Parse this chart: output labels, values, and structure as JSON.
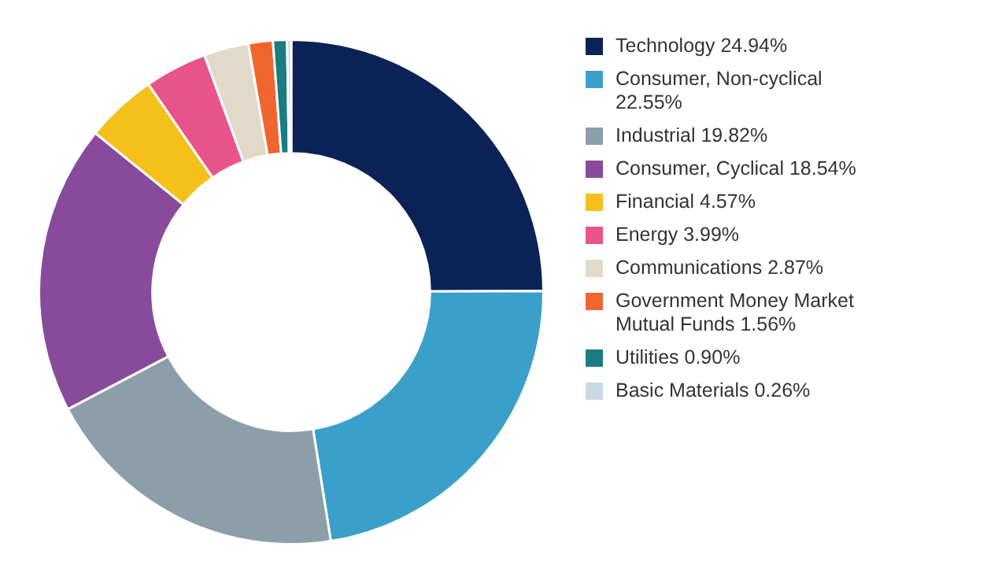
{
  "chart_data": {
    "type": "donut",
    "categories": [
      "Technology",
      "Consumer, Non-cyclical",
      "Industrial",
      "Consumer, Cyclical",
      "Financial",
      "Energy",
      "Communications",
      "Government Money Market Mutual Funds",
      "Utilities",
      "Basic Materials"
    ],
    "values": [
      24.94,
      22.55,
      19.82,
      18.54,
      4.57,
      3.99,
      2.87,
      1.56,
      0.9,
      0.26
    ],
    "value_labels": [
      "24.94%",
      "22.55%",
      "19.82%",
      "18.54%",
      "4.57%",
      "3.99%",
      "2.87%",
      "1.56%",
      "0.90%",
      "0.26%"
    ],
    "colors": [
      "#0b2256",
      "#3aa0c9",
      "#8c9fa8",
      "#884b9c",
      "#f5c01b",
      "#e8538a",
      "#e2dac8",
      "#f0652f",
      "#1b7c82",
      "#c9d9e2"
    ],
    "legend": "right"
  }
}
